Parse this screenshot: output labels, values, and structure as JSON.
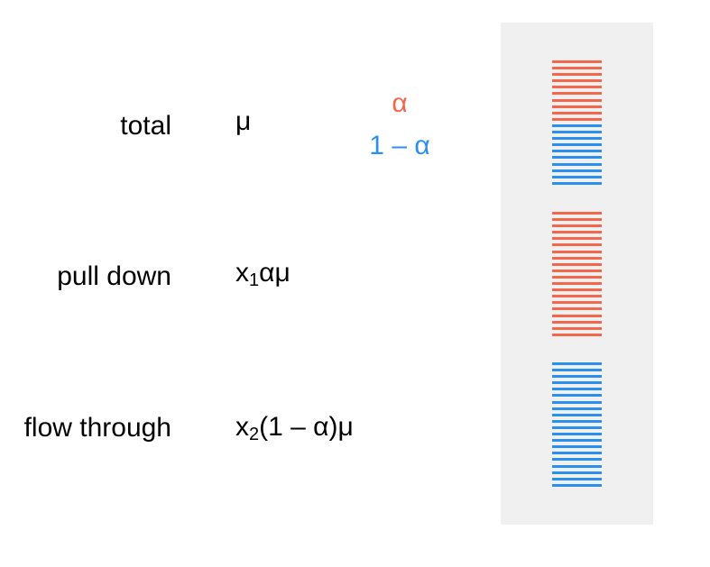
{
  "colors": {
    "alpha": "#f4674c",
    "one_minus_alpha": "#2b8ff0",
    "panel_bg": "#f0f0f0",
    "text": "#000000"
  },
  "rows": {
    "total": {
      "label": "total",
      "formula": "μ"
    },
    "pull_down": {
      "label": "pull down",
      "formula_x": "x",
      "formula_sub": "1",
      "formula_rest": "αμ"
    },
    "flow_through": {
      "label": "flow through",
      "formula_x": "x",
      "formula_sub": "2",
      "formula_rest": "(1 – α)μ"
    }
  },
  "legend": {
    "alpha": "α",
    "one_minus_alpha": "1 – α"
  },
  "stacks": [
    {
      "segments": [
        {
          "color_key": "alpha",
          "lines": 10
        },
        {
          "color_key": "one_minus_alpha",
          "lines": 10
        }
      ]
    },
    {
      "segments": [
        {
          "color_key": "alpha",
          "lines": 20
        }
      ]
    },
    {
      "segments": [
        {
          "color_key": "one_minus_alpha",
          "lines": 20
        }
      ]
    }
  ]
}
